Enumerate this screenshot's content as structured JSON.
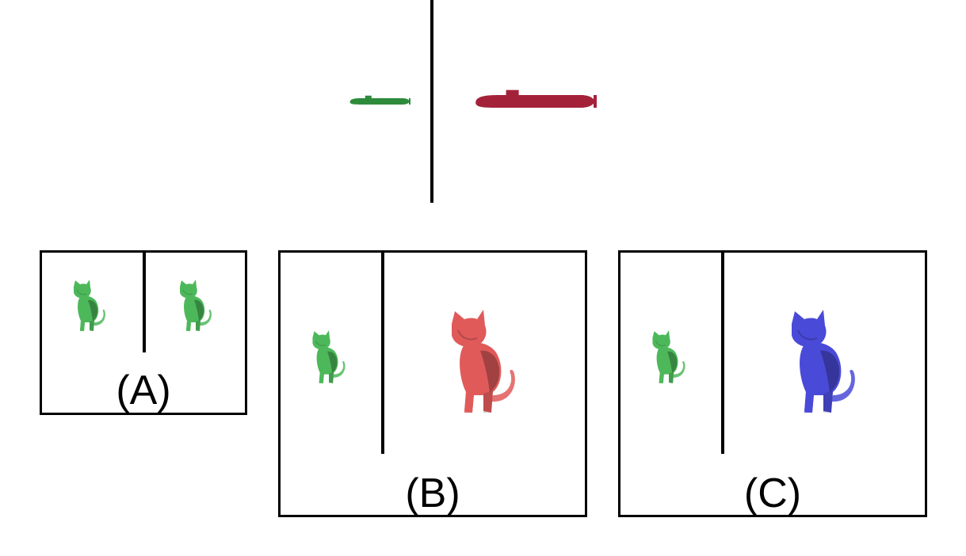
{
  "example": {
    "icon_left": "green-submarine-icon",
    "icon_right": "red-submarine-icon",
    "colors": {
      "green": "#2e8b3c",
      "red": "#a3223a"
    }
  },
  "options": [
    {
      "label": "(A)",
      "left_icon": "green-cat-icon",
      "right_icon": "green-cat-icon",
      "right_color": "#4db85a"
    },
    {
      "label": "(B)",
      "left_icon": "green-cat-icon",
      "right_icon": "red-cat-icon",
      "right_color": "#e05a5a"
    },
    {
      "label": "(C)",
      "left_icon": "green-cat-icon",
      "right_icon": "blue-cat-icon",
      "right_color": "#4a4ad8"
    }
  ],
  "colors": {
    "cat_green": "#4db85a",
    "cat_green_dark": "#2f8a3a"
  }
}
